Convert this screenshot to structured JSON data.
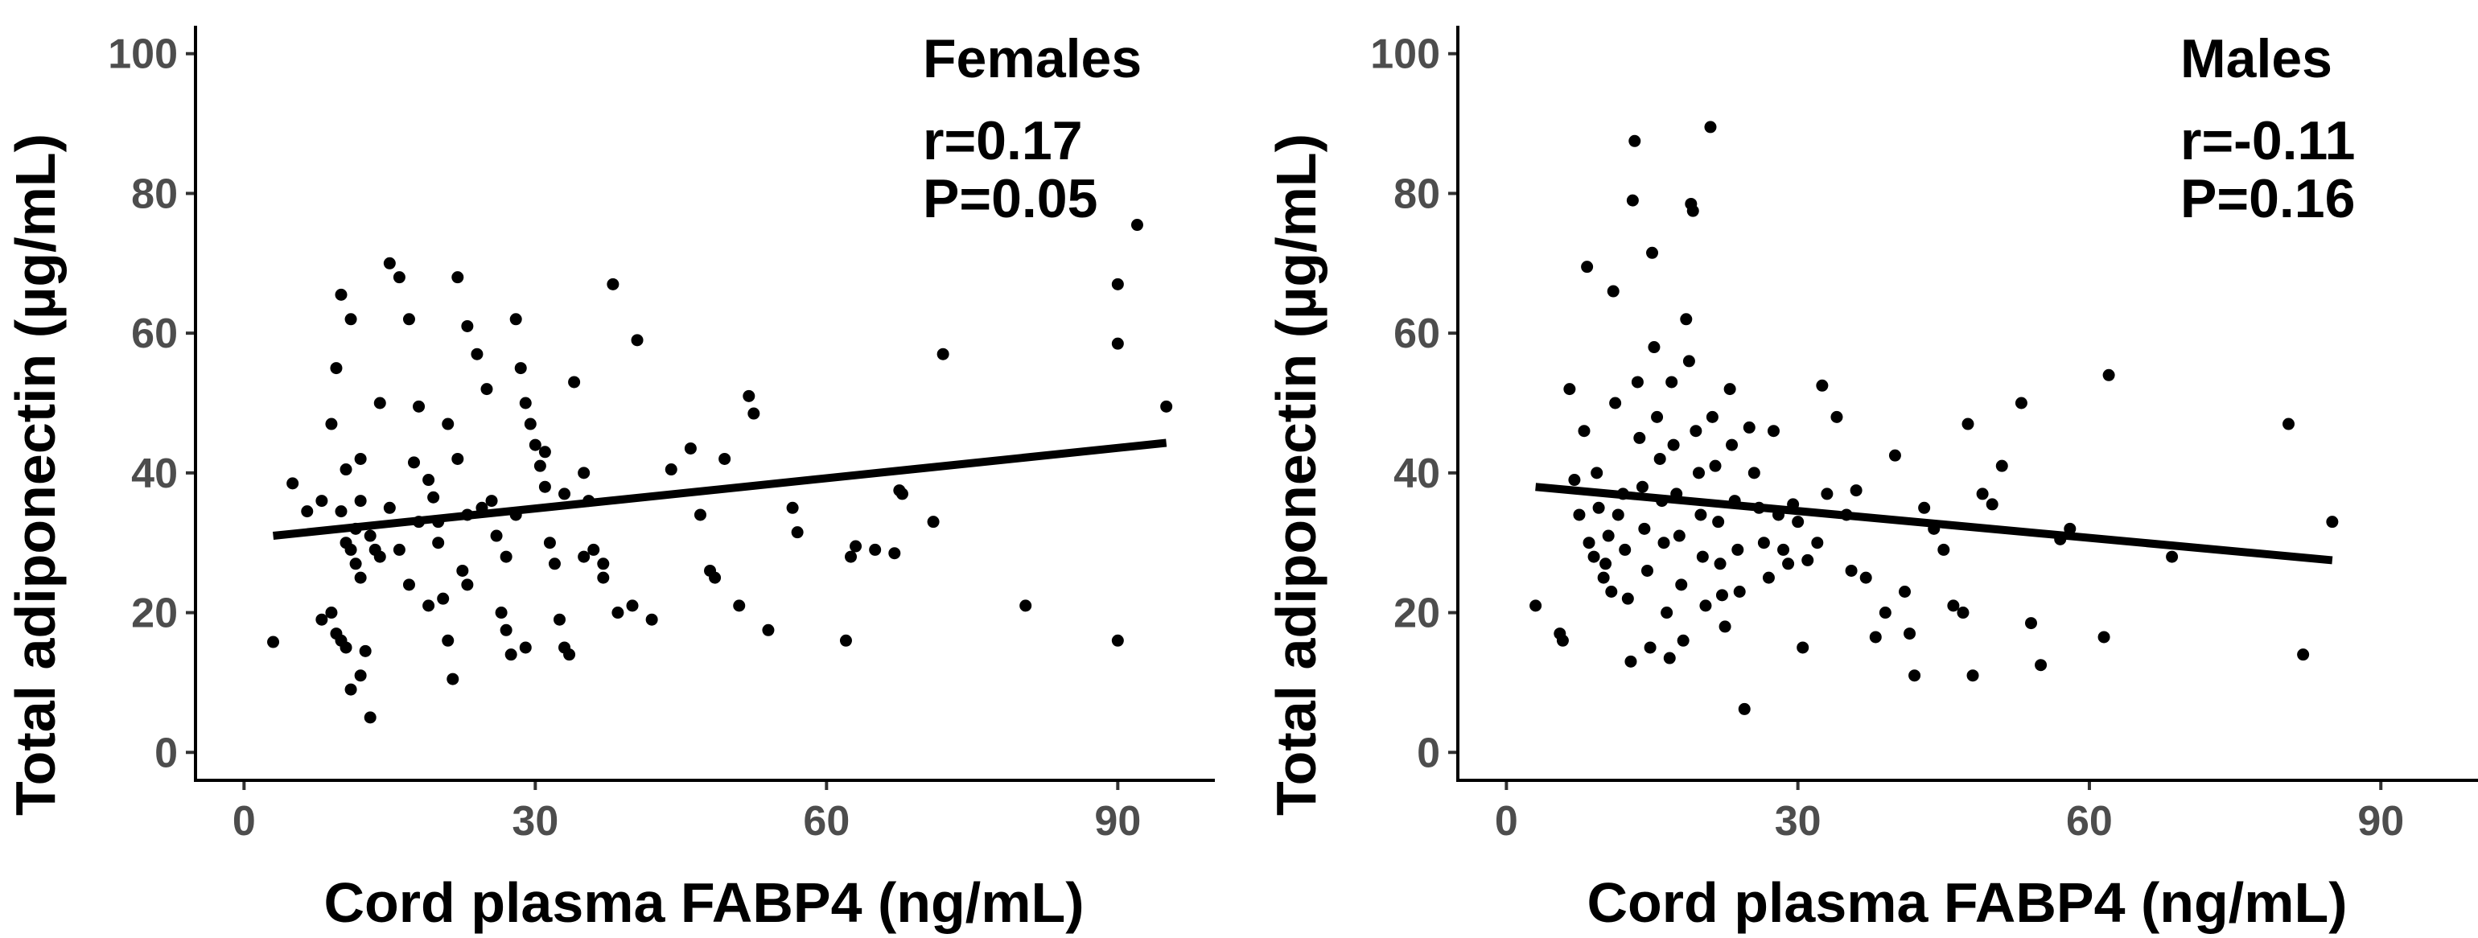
{
  "chart_data": [
    {
      "type": "scatter",
      "panel": "left",
      "title": "",
      "xlabel": "Cord plasma FABP4 (ng/mL)",
      "ylabel": "Total adiponectin (µg/mL)",
      "xlim": [
        -5,
        100
      ],
      "ylim": [
        -4,
        104
      ],
      "xticks": [
        0,
        30,
        60,
        90
      ],
      "xtick_labels": [
        "0",
        "30",
        "60",
        "90"
      ],
      "yticks": [
        0,
        20,
        40,
        60,
        80,
        100
      ],
      "ytick_labels": [
        "0",
        "20",
        "40",
        "60",
        "80",
        "100"
      ],
      "annotations": [
        "Females",
        "r=0.17",
        "P=0.05"
      ],
      "fit_line": {
        "x": [
          3,
          95
        ],
        "y": [
          31,
          44.3
        ]
      },
      "points": [
        [
          3,
          15.8
        ],
        [
          5,
          38.5
        ],
        [
          6.5,
          34.5
        ],
        [
          8,
          36
        ],
        [
          9,
          47
        ],
        [
          9.5,
          55
        ],
        [
          8,
          19
        ],
        [
          9,
          20
        ],
        [
          10,
          65.5
        ],
        [
          10.5,
          40.5
        ],
        [
          11,
          62
        ],
        [
          11.5,
          32
        ],
        [
          12,
          36
        ],
        [
          12,
          42
        ],
        [
          10,
          34.5
        ],
        [
          10.5,
          30
        ],
        [
          11,
          29
        ],
        [
          11.5,
          27
        ],
        [
          12,
          25
        ],
        [
          9.5,
          17
        ],
        [
          10,
          16
        ],
        [
          10.5,
          15
        ],
        [
          11,
          9
        ],
        [
          12,
          11
        ],
        [
          12.5,
          14.5
        ],
        [
          13,
          5
        ],
        [
          13.5,
          29
        ],
        [
          14,
          28
        ],
        [
          15,
          70
        ],
        [
          16,
          68
        ],
        [
          17,
          62
        ],
        [
          17.5,
          41.5
        ],
        [
          18,
          49.5
        ],
        [
          19,
          39
        ],
        [
          19.5,
          36.5
        ],
        [
          20,
          33
        ],
        [
          20,
          30
        ],
        [
          20.5,
          22
        ],
        [
          21,
          16
        ],
        [
          21.5,
          10.5
        ],
        [
          22,
          68
        ],
        [
          23,
          61
        ],
        [
          22.5,
          26
        ],
        [
          23,
          24
        ],
        [
          24,
          57
        ],
        [
          25,
          52
        ],
        [
          24.5,
          35
        ],
        [
          25.5,
          36
        ],
        [
          26,
          31
        ],
        [
          26.5,
          20
        ],
        [
          27,
          17.5
        ],
        [
          27.5,
          14
        ],
        [
          28,
          62
        ],
        [
          28.5,
          55
        ],
        [
          29,
          50
        ],
        [
          29.5,
          47
        ],
        [
          30,
          44
        ],
        [
          30.5,
          41
        ],
        [
          31,
          38
        ],
        [
          31.5,
          30
        ],
        [
          32,
          27
        ],
        [
          32.5,
          19
        ],
        [
          33,
          15
        ],
        [
          33.5,
          14
        ],
        [
          34,
          53
        ],
        [
          35,
          40
        ],
        [
          35.5,
          36
        ],
        [
          36,
          29
        ],
        [
          37,
          25
        ],
        [
          28,
          34
        ],
        [
          22,
          42
        ],
        [
          18,
          33
        ],
        [
          16,
          29
        ],
        [
          14,
          50
        ],
        [
          13,
          31
        ],
        [
          15,
          35
        ],
        [
          17,
          24
        ],
        [
          19,
          21
        ],
        [
          21,
          47
        ],
        [
          23,
          34
        ],
        [
          27,
          28
        ],
        [
          29,
          15
        ],
        [
          31,
          43
        ],
        [
          33,
          37
        ],
        [
          35,
          28
        ],
        [
          38,
          67
        ],
        [
          37,
          27
        ],
        [
          38.5,
          20
        ],
        [
          40,
          21
        ],
        [
          40.5,
          59
        ],
        [
          42,
          19
        ],
        [
          44,
          40.5
        ],
        [
          46,
          43.5
        ],
        [
          47,
          34
        ],
        [
          48,
          26
        ],
        [
          48.5,
          25
        ],
        [
          49.5,
          42
        ],
        [
          51,
          21
        ],
        [
          52,
          51
        ],
        [
          52.5,
          48.5
        ],
        [
          54,
          17.5
        ],
        [
          56.5,
          35
        ],
        [
          57,
          31.5
        ],
        [
          62,
          16
        ],
        [
          62.5,
          28
        ],
        [
          63,
          29.5
        ],
        [
          65,
          29
        ],
        [
          67,
          28.5
        ],
        [
          67.5,
          37.5
        ],
        [
          67.8,
          37
        ],
        [
          71,
          33
        ],
        [
          72,
          57
        ],
        [
          80.5,
          21
        ],
        [
          90,
          16
        ],
        [
          90,
          58.5
        ],
        [
          90,
          67
        ],
        [
          92,
          75.5
        ],
        [
          95,
          49.5
        ]
      ]
    },
    {
      "type": "scatter",
      "panel": "right",
      "title": "",
      "xlabel": "Cord plasma FABP4 (ng/mL)",
      "ylabel": "Total adiponectin (µg/mL)",
      "xlim": [
        -5,
        100
      ],
      "ylim": [
        -4,
        104
      ],
      "xticks": [
        0,
        30,
        60,
        90
      ],
      "xtick_labels": [
        "0",
        "30",
        "60",
        "90"
      ],
      "yticks": [
        0,
        20,
        40,
        60,
        80,
        100
      ],
      "ytick_labels": [
        "0",
        "20",
        "40",
        "60",
        "80",
        "100"
      ],
      "annotations": [
        "Males",
        "r=-0.11",
        "P=0.16"
      ],
      "fit_line": {
        "x": [
          3,
          85
        ],
        "y": [
          38,
          27.5
        ]
      },
      "points": [
        [
          3,
          21
        ],
        [
          5.5,
          17
        ],
        [
          5.8,
          16
        ],
        [
          6.5,
          52
        ],
        [
          7,
          39
        ],
        [
          7.5,
          34
        ],
        [
          8,
          46
        ],
        [
          8.3,
          69.5
        ],
        [
          8.5,
          30
        ],
        [
          9,
          28
        ],
        [
          9.3,
          40
        ],
        [
          9.5,
          35
        ],
        [
          10,
          25
        ],
        [
          10.2,
          27
        ],
        [
          10.5,
          31
        ],
        [
          10.8,
          23
        ],
        [
          11,
          66
        ],
        [
          11.2,
          50
        ],
        [
          11.5,
          34
        ],
        [
          12,
          37
        ],
        [
          12.2,
          29
        ],
        [
          12.5,
          22
        ],
        [
          12.8,
          13
        ],
        [
          13,
          79
        ],
        [
          13.2,
          87.5
        ],
        [
          13.5,
          53
        ],
        [
          13.7,
          45
        ],
        [
          14,
          38
        ],
        [
          14.2,
          32
        ],
        [
          14.5,
          26
        ],
        [
          14.8,
          15
        ],
        [
          15,
          71.5
        ],
        [
          15.2,
          58
        ],
        [
          15.5,
          48
        ],
        [
          15.8,
          42
        ],
        [
          16,
          36
        ],
        [
          16.2,
          30
        ],
        [
          16.5,
          20
        ],
        [
          16.8,
          13.5
        ],
        [
          17,
          53
        ],
        [
          17.2,
          44
        ],
        [
          17.5,
          37
        ],
        [
          17.8,
          31
        ],
        [
          18,
          24
        ],
        [
          18.2,
          16
        ],
        [
          18.5,
          62
        ],
        [
          18.8,
          56
        ],
        [
          19,
          78.5
        ],
        [
          19.2,
          77.5
        ],
        [
          19.5,
          46
        ],
        [
          19.8,
          40
        ],
        [
          20,
          34
        ],
        [
          20.2,
          28
        ],
        [
          20.5,
          21
        ],
        [
          21,
          89.5
        ],
        [
          21.2,
          48
        ],
        [
          21.5,
          41
        ],
        [
          21.8,
          33
        ],
        [
          22,
          27
        ],
        [
          22.2,
          22.5
        ],
        [
          22.5,
          18
        ],
        [
          23,
          52
        ],
        [
          23.2,
          44
        ],
        [
          23.5,
          36
        ],
        [
          23.8,
          29
        ],
        [
          24,
          23
        ],
        [
          24.5,
          6.2
        ],
        [
          25,
          46.5
        ],
        [
          25.5,
          40
        ],
        [
          26,
          35
        ],
        [
          26.5,
          30
        ],
        [
          27,
          25
        ],
        [
          27.5,
          46
        ],
        [
          28,
          34
        ],
        [
          28.5,
          29
        ],
        [
          29,
          27
        ],
        [
          29.5,
          35.5
        ],
        [
          30,
          33
        ],
        [
          30.5,
          15
        ],
        [
          31,
          27.5
        ],
        [
          32,
          30
        ],
        [
          32.5,
          52.5
        ],
        [
          33,
          37
        ],
        [
          34,
          48
        ],
        [
          35,
          34
        ],
        [
          35.5,
          26
        ],
        [
          36,
          37.5
        ],
        [
          37,
          25
        ],
        [
          38,
          16.5
        ],
        [
          39,
          20
        ],
        [
          40,
          42.5
        ],
        [
          41,
          23
        ],
        [
          41.5,
          17
        ],
        [
          42,
          11
        ],
        [
          43,
          35
        ],
        [
          44,
          32
        ],
        [
          45,
          29
        ],
        [
          46,
          21
        ],
        [
          47,
          20
        ],
        [
          47.5,
          47
        ],
        [
          48,
          11
        ],
        [
          49,
          37
        ],
        [
          50,
          35.5
        ],
        [
          51,
          41
        ],
        [
          53,
          50
        ],
        [
          54,
          18.5
        ],
        [
          55,
          12.5
        ],
        [
          57,
          30.5
        ],
        [
          58,
          32
        ],
        [
          61.5,
          16.5
        ],
        [
          62,
          54
        ],
        [
          68.5,
          28
        ],
        [
          80.5,
          47
        ],
        [
          82,
          14
        ],
        [
          85,
          33
        ]
      ]
    }
  ]
}
